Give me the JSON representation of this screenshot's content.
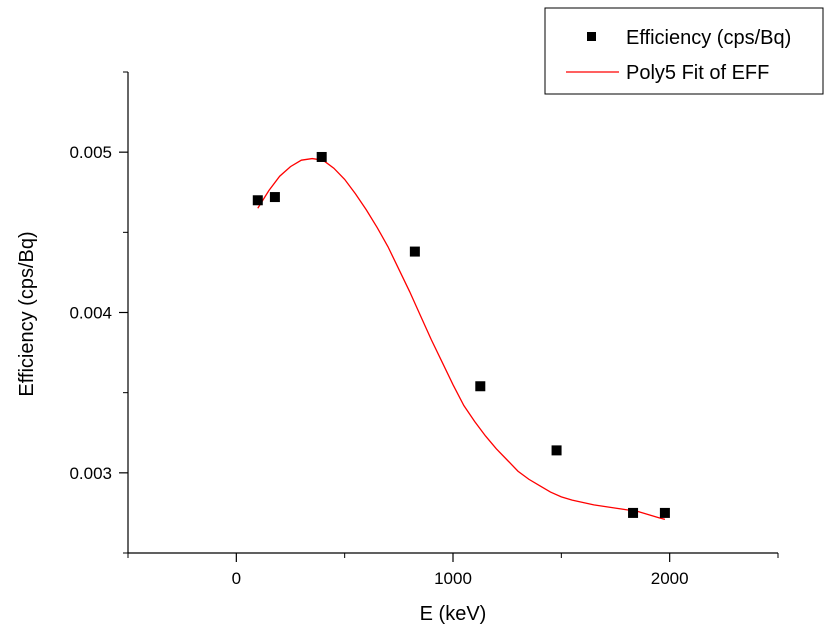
{
  "chart_data": {
    "type": "scatter",
    "title": "",
    "xlabel": "E (keV)",
    "ylabel": "Efficiency (cps/Bq)",
    "xlim": [
      -500,
      2500
    ],
    "ylim": [
      0.0025,
      0.0055
    ],
    "x_ticks": [
      0,
      1000,
      2000
    ],
    "x_tick_labels": [
      "0",
      "1000",
      "2000"
    ],
    "y_ticks": [
      0.003,
      0.004,
      0.005
    ],
    "y_tick_labels": [
      "0.003",
      "0.004",
      "0.005"
    ],
    "grid": false,
    "legend_position": "top-right",
    "series": [
      {
        "name": "Efficiency (cps/Bq)",
        "type": "scatter",
        "marker": "square",
        "color": "#000000",
        "x": [
          99,
          178,
          394,
          824,
          1126,
          1478,
          1831,
          1978
        ],
        "y": [
          0.0047,
          0.00472,
          0.00497,
          0.00438,
          0.00354,
          0.00314,
          0.00275,
          0.00275
        ]
      },
      {
        "name": "Poly5 Fit of EFF",
        "type": "line",
        "color": "#ff0000",
        "x": [
          99,
          150,
          200,
          250,
          300,
          350,
          400,
          450,
          500,
          550,
          600,
          650,
          700,
          750,
          800,
          850,
          900,
          950,
          1000,
          1050,
          1100,
          1150,
          1200,
          1250,
          1300,
          1350,
          1400,
          1450,
          1500,
          1550,
          1600,
          1650,
          1700,
          1750,
          1800,
          1850,
          1900,
          1950,
          1978
        ],
        "y": [
          0.00465,
          0.00476,
          0.00485,
          0.00491,
          0.00495,
          0.00496,
          0.00495,
          0.0049,
          0.00483,
          0.00474,
          0.00464,
          0.00453,
          0.00441,
          0.00427,
          0.00413,
          0.00398,
          0.00383,
          0.00369,
          0.00355,
          0.00342,
          0.00332,
          0.00323,
          0.00315,
          0.00308,
          0.00301,
          0.00296,
          0.00292,
          0.00288,
          0.00285,
          0.00283,
          0.002815,
          0.0028,
          0.00279,
          0.00278,
          0.00277,
          0.00276,
          0.00274,
          0.00272,
          0.00271
        ]
      }
    ]
  }
}
